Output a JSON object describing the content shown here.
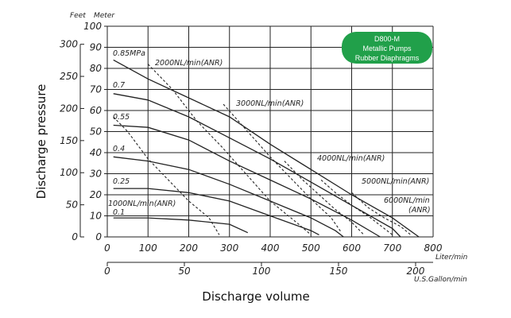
{
  "chart_data": {
    "type": "line",
    "model_badge": {
      "lines": [
        "D800-M",
        "Metallic Pumps",
        "Rubber Diaphragms"
      ],
      "color": "#21a04a"
    },
    "ylabel": "Discharge pressure",
    "xlabel": "Discharge volume",
    "y_left_units": "Feet",
    "y_right_units": "Meter",
    "x_primary_unit": "Liter/min",
    "x_secondary_unit": "U.S.Gallon/min",
    "x_primary_ticks": [
      "0",
      "100",
      "200",
      "300",
      "400",
      "500",
      "600",
      "700",
      "800"
    ],
    "x_secondary_ticks": [
      "0",
      "50",
      "100",
      "150",
      "200"
    ],
    "y_meter_ticks": [
      "0",
      "10",
      "20",
      "30",
      "40",
      "50",
      "60",
      "70",
      "80",
      "90",
      "100"
    ],
    "y_feet_ticks": [
      "0",
      "50",
      "100",
      "150",
      "200",
      "250",
      "300"
    ],
    "xlim": [
      0,
      800
    ],
    "ylim": [
      0,
      100
    ],
    "grid": true,
    "pressure_series": [
      {
        "name": "0.85MPa",
        "points": [
          [
            15,
            84
          ],
          [
            100,
            75
          ],
          [
            200,
            66
          ],
          [
            300,
            57
          ],
          [
            400,
            44
          ],
          [
            500,
            32
          ],
          [
            600,
            20
          ],
          [
            700,
            9
          ],
          [
            765,
            0
          ]
        ]
      },
      {
        "name": "0.7",
        "points": [
          [
            15,
            68
          ],
          [
            100,
            65
          ],
          [
            200,
            57
          ],
          [
            300,
            47
          ],
          [
            400,
            37
          ],
          [
            500,
            26
          ],
          [
            600,
            15
          ],
          [
            700,
            4
          ],
          [
            720,
            0
          ]
        ]
      },
      {
        "name": "0.55",
        "points": [
          [
            15,
            53
          ],
          [
            100,
            52
          ],
          [
            200,
            46
          ],
          [
            300,
            36
          ],
          [
            400,
            27
          ],
          [
            500,
            18
          ],
          [
            600,
            8
          ],
          [
            670,
            0
          ]
        ]
      },
      {
        "name": "0.4",
        "points": [
          [
            15,
            38
          ],
          [
            100,
            36
          ],
          [
            200,
            32
          ],
          [
            300,
            25
          ],
          [
            400,
            17
          ],
          [
            500,
            9
          ],
          [
            560,
            3
          ],
          [
            580,
            0
          ]
        ]
      },
      {
        "name": "0.25",
        "points": [
          [
            15,
            23
          ],
          [
            100,
            23
          ],
          [
            200,
            21
          ],
          [
            300,
            17
          ],
          [
            400,
            10
          ],
          [
            500,
            3
          ],
          [
            520,
            1
          ]
        ]
      },
      {
        "name": "0.1",
        "points": [
          [
            15,
            9
          ],
          [
            100,
            9
          ],
          [
            200,
            8
          ],
          [
            300,
            6
          ],
          [
            345,
            2
          ]
        ]
      }
    ],
    "air_consumption_series": [
      {
        "name": "1000NL/min(ANR)",
        "points": [
          [
            15,
            57
          ],
          [
            50,
            50
          ],
          [
            100,
            37
          ],
          [
            150,
            27
          ],
          [
            200,
            17
          ],
          [
            250,
            9
          ],
          [
            275,
            1
          ]
        ]
      },
      {
        "name": "2000NL/min(ANR)",
        "points": [
          [
            100,
            82
          ],
          [
            160,
            70
          ],
          [
            220,
            55
          ],
          [
            280,
            43
          ],
          [
            340,
            30
          ],
          [
            400,
            17
          ],
          [
            470,
            6
          ],
          [
            500,
            1
          ]
        ]
      },
      {
        "name": "3000NL/min(ANR)",
        "points": [
          [
            285,
            63
          ],
          [
            340,
            51
          ],
          [
            400,
            38
          ],
          [
            450,
            28
          ],
          [
            500,
            18
          ],
          [
            550,
            9
          ],
          [
            575,
            2
          ]
        ]
      },
      {
        "name": "4000NL/min(ANR)",
        "points": [
          [
            435,
            36
          ],
          [
            480,
            27
          ],
          [
            520,
            20
          ],
          [
            560,
            13
          ],
          [
            600,
            7
          ],
          [
            630,
            1
          ]
        ]
      },
      {
        "name": "5000NL/min(ANR)",
        "points": [
          [
            525,
            27
          ],
          [
            560,
            21
          ],
          [
            600,
            15
          ],
          [
            640,
            10
          ],
          [
            680,
            4
          ],
          [
            700,
            1
          ]
        ]
      },
      {
        "name": "6000NL/min(ANR)",
        "points": [
          [
            600,
            21
          ],
          [
            640,
            14
          ],
          [
            680,
            9
          ],
          [
            720,
            5
          ],
          [
            745,
            1
          ]
        ]
      }
    ]
  }
}
